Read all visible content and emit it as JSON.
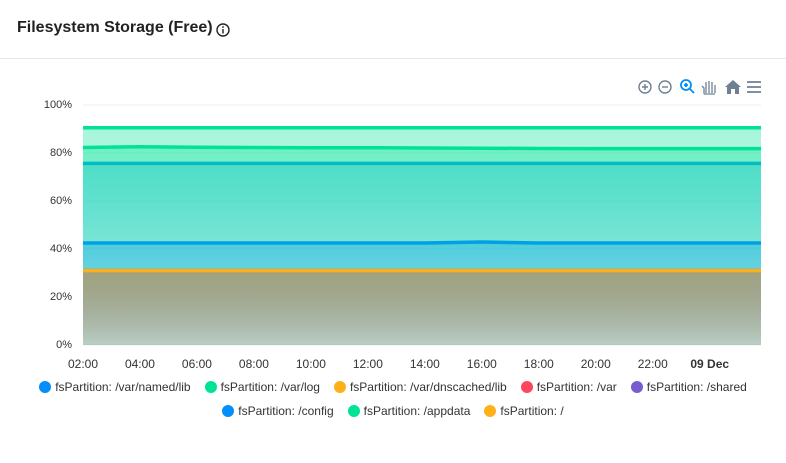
{
  "title": "Filesystem Storage (Free)",
  "chart_data": {
    "type": "area",
    "x": [
      2,
      4,
      6,
      8,
      10,
      12,
      14,
      16,
      18,
      20,
      22,
      24,
      25.8
    ],
    "xlim": [
      2,
      25.8
    ],
    "xticks": [
      {
        "value": 2,
        "label": "02:00"
      },
      {
        "value": 4,
        "label": "04:00"
      },
      {
        "value": 6,
        "label": "06:00"
      },
      {
        "value": 8,
        "label": "08:00"
      },
      {
        "value": 10,
        "label": "10:00"
      },
      {
        "value": 12,
        "label": "12:00"
      },
      {
        "value": 14,
        "label": "14:00"
      },
      {
        "value": 16,
        "label": "16:00"
      },
      {
        "value": 18,
        "label": "18:00"
      },
      {
        "value": 20,
        "label": "20:00"
      },
      {
        "value": 22,
        "label": "22:00"
      },
      {
        "value": 24,
        "label": "09 Dec",
        "bold": true
      }
    ],
    "ylim": [
      0,
      100
    ],
    "yticks": [
      {
        "value": 0,
        "label": "0%"
      },
      {
        "value": 20,
        "label": "20%"
      },
      {
        "value": 40,
        "label": "40%"
      },
      {
        "value": 60,
        "label": "60%"
      },
      {
        "value": 80,
        "label": "80%"
      },
      {
        "value": 100,
        "label": "100%"
      }
    ],
    "grid": true,
    "series": [
      {
        "name": "fsPartition: /var/named/lib",
        "color": "#008FFB",
        "values": [
          75.7,
          75.7,
          75.7,
          75.7,
          75.7,
          75.7,
          75.7,
          75.7,
          75.7,
          75.7,
          75.7,
          75.7,
          75.7
        ]
      },
      {
        "name": "fsPartition: /var/log",
        "color": "#00E396",
        "values": [
          82.3,
          82.6,
          82.4,
          82.3,
          82.2,
          82.2,
          82.1,
          82.0,
          81.9,
          81.8,
          81.8,
          81.8,
          81.8
        ]
      },
      {
        "name": "fsPartition: /var/dnscached/lib",
        "color": "#FEB019",
        "values": [
          31,
          31,
          31,
          31,
          31,
          31,
          31,
          31,
          31,
          31,
          31,
          31,
          31
        ]
      },
      {
        "name": "fsPartition: /var",
        "color": "#FF4560",
        "values": [
          31,
          31,
          31,
          31,
          31,
          31,
          31,
          31,
          31,
          31,
          31,
          31,
          31
        ]
      },
      {
        "name": "fsPartition: /shared",
        "color": "#775DD0",
        "values": [
          31,
          31,
          31,
          31,
          31,
          31,
          31,
          31,
          31,
          31,
          31,
          31,
          31
        ]
      },
      {
        "name": "fsPartition: /config",
        "color": "#008FFB",
        "values": [
          42.5,
          42.5,
          42.5,
          42.5,
          42.5,
          42.5,
          42.5,
          42.9,
          42.5,
          42.5,
          42.5,
          42.5,
          42.5
        ]
      },
      {
        "name": "fsPartition: /appdata",
        "color": "#00E396",
        "values": [
          90.5,
          90.5,
          90.5,
          90.5,
          90.5,
          90.5,
          90.5,
          90.5,
          90.5,
          90.5,
          90.5,
          90.5,
          90.5
        ]
      },
      {
        "name": "fsPartition: /",
        "color": "#FEB019",
        "values": [
          31,
          31,
          31,
          31,
          31,
          31,
          31,
          31,
          31,
          31,
          31,
          31,
          31
        ]
      }
    ]
  }
}
